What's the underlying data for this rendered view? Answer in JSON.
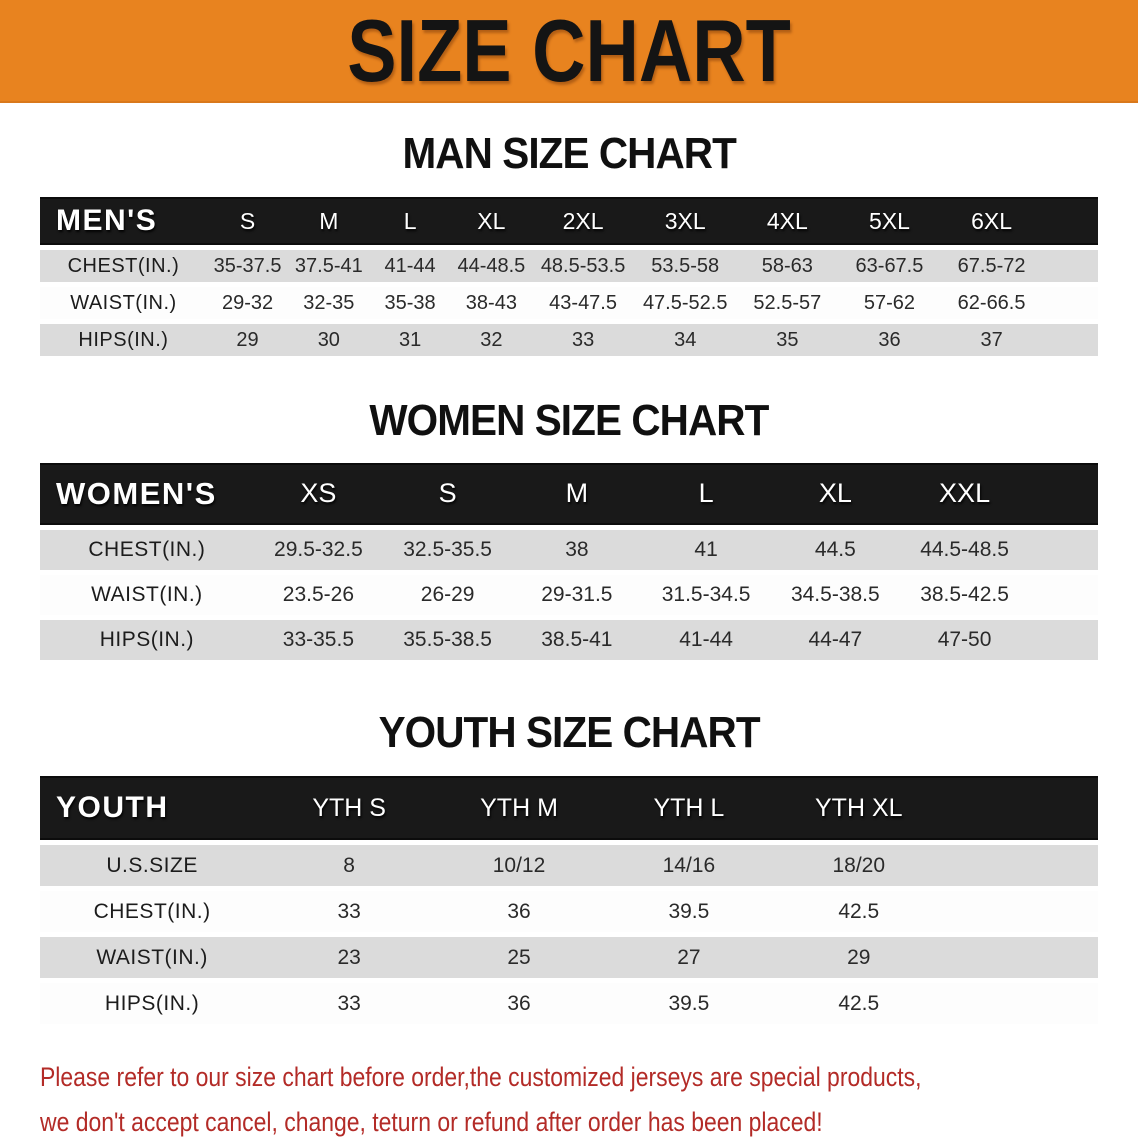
{
  "banner": {
    "title": "SIZE CHART"
  },
  "colors": {
    "banner_bg": "#e8831f",
    "table_header_bg": "#191919",
    "row_stripe": "#dbdbdb",
    "note_text": "#b32b27"
  },
  "sections": [
    {
      "id": "men",
      "heading": "MAN SIZE CHART",
      "table": {
        "label": "MEN'S",
        "columns": [
          "S",
          "M",
          "L",
          "XL",
          "2XL",
          "3XL",
          "4XL",
          "5XL",
          "6XL"
        ],
        "rows": [
          {
            "label": "CHEST(IN.)",
            "values": [
              "35-37.5",
              "37.5-41",
              "41-44",
              "44-48.5",
              "48.5-53.5",
              "53.5-58",
              "58-63",
              "63-67.5",
              "67.5-72"
            ]
          },
          {
            "label": "WAIST(IN.)",
            "values": [
              "29-32",
              "32-35",
              "35-38",
              "38-43",
              "43-47.5",
              "47.5-52.5",
              "52.5-57",
              "57-62",
              "62-66.5"
            ]
          },
          {
            "label": "HIPS(IN.)",
            "values": [
              "29",
              "30",
              "31",
              "32",
              "33",
              "34",
              "35",
              "36",
              "37"
            ]
          }
        ]
      }
    },
    {
      "id": "women",
      "heading": "WOMEN SIZE CHART",
      "table": {
        "label": "WOMEN'S",
        "columns": [
          "XS",
          "S",
          "M",
          "L",
          "XL",
          "XXL"
        ],
        "rows": [
          {
            "label": "CHEST(IN.)",
            "values": [
              "29.5-32.5",
              "32.5-35.5",
              "38",
              "41",
              "44.5",
              "44.5-48.5"
            ]
          },
          {
            "label": "WAIST(IN.)",
            "values": [
              "23.5-26",
              "26-29",
              "29-31.5",
              "31.5-34.5",
              "34.5-38.5",
              "38.5-42.5"
            ]
          },
          {
            "label": "HIPS(IN.)",
            "values": [
              "33-35.5",
              "35.5-38.5",
              "38.5-41",
              "41-44",
              "44-47",
              "47-50"
            ]
          }
        ]
      }
    },
    {
      "id": "youth",
      "heading": "YOUTH SIZE CHART",
      "table": {
        "label": "YOUTH",
        "columns": [
          "YTH S",
          "YTH M",
          "YTH L",
          "YTH XL"
        ],
        "rows": [
          {
            "label": "U.S.SIZE",
            "values": [
              "8",
              "10/12",
              "14/16",
              "18/20"
            ]
          },
          {
            "label": "CHEST(IN.)",
            "values": [
              "33",
              "36",
              "39.5",
              "42.5"
            ]
          },
          {
            "label": "WAIST(IN.)",
            "values": [
              "23",
              "25",
              "27",
              "29"
            ]
          },
          {
            "label": "HIPS(IN.)",
            "values": [
              "33",
              "36",
              "39.5",
              "42.5"
            ]
          }
        ]
      }
    }
  ],
  "footer": {
    "line1": "Please refer to our size chart before order,the customized jerseys are special products,",
    "line2": "we don't accept cancel, change, teturn or refund after order has been placed!"
  }
}
